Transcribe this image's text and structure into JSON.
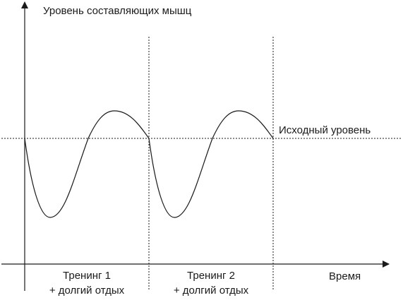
{
  "diagram": {
    "y_axis_label": "Уровень составляющих мышц",
    "x_axis_label": "Время",
    "baseline_label": "Исходный уровень",
    "phases": [
      {
        "line1": "Тренинг 1",
        "line2": "+ долгий отдых"
      },
      {
        "line1": "Тренинг 2",
        "line2": "+ долгий отдых"
      }
    ],
    "colors": {
      "ink": "#1a1a1a",
      "background": "#ffffff"
    }
  }
}
